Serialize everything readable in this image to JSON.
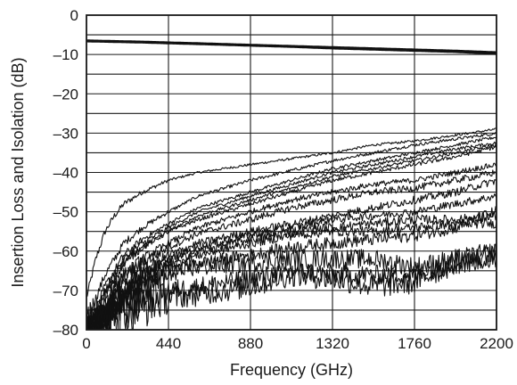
{
  "chart_data": {
    "type": "line",
    "title": "",
    "xlabel": "Frequency (GHz)",
    "ylabel": "Insertion Loss and Isolation (dB)",
    "xlim": [
      0,
      2200
    ],
    "ylim": [
      -80,
      0
    ],
    "x_ticks": [
      0,
      440,
      880,
      1320,
      1760,
      2200
    ],
    "y_ticks": [
      0,
      -10,
      -20,
      -30,
      -40,
      -50,
      -60,
      -70,
      -80
    ],
    "x_tick_labels": [
      "0",
      "440",
      "880",
      "1320",
      "1760",
      "2200"
    ],
    "y_tick_labels": [
      "0",
      "–10",
      "–20",
      "–30",
      "–40",
      "–50",
      "–60",
      "–70",
      "–80"
    ],
    "grid": true,
    "x": [
      0,
      50,
      100,
      150,
      200,
      300,
      440,
      600,
      880,
      1100,
      1320,
      1540,
      1760,
      1980,
      2200
    ],
    "series": [
      {
        "values": [
          -6.5,
          -6.55,
          -6.6,
          -6.65,
          -6.7,
          -6.8,
          -7.0,
          -7.2,
          -7.6,
          -7.9,
          -8.2,
          -8.5,
          -8.8,
          -9.1,
          -9.5
        ],
        "noise": 0
      },
      {
        "values": [
          -6.6,
          -6.65,
          -6.7,
          -6.75,
          -6.8,
          -6.9,
          -7.1,
          -7.3,
          -7.7,
          -8.0,
          -8.4,
          -8.7,
          -9.0,
          -9.3,
          -9.8
        ],
        "noise": 0
      },
      {
        "values": [
          -72,
          -62,
          -55,
          -51,
          -48,
          -45,
          -42,
          -40,
          -38,
          -36.5,
          -35,
          -33,
          -32,
          -30.5,
          -29
        ],
        "noise": 0.3
      },
      {
        "values": [
          -80,
          -72,
          -66,
          -62,
          -58,
          -54,
          -50,
          -46,
          -42,
          -39.5,
          -37,
          -35,
          -33,
          -31.5,
          -30
        ],
        "noise": 0.4
      },
      {
        "values": [
          -80,
          -75,
          -69,
          -65,
          -61,
          -57,
          -53,
          -49,
          -45,
          -42,
          -39,
          -37,
          -35,
          -33,
          -31
        ],
        "noise": 0.4
      },
      {
        "values": [
          -80,
          -76,
          -70,
          -66,
          -62,
          -58,
          -54,
          -50,
          -46,
          -43,
          -40,
          -38,
          -36,
          -34,
          -32.5
        ],
        "noise": 0.4
      },
      {
        "values": [
          -80,
          -77,
          -72,
          -67,
          -63,
          -59,
          -55,
          -51,
          -47,
          -44,
          -41,
          -39,
          -37,
          -35,
          -33
        ],
        "noise": 0.4
      },
      {
        "values": [
          -80,
          -76,
          -71,
          -67,
          -63,
          -59,
          -55,
          -52,
          -48,
          -45,
          -42,
          -40,
          -38,
          -36,
          -33.5
        ],
        "noise": 0.5
      },
      {
        "values": [
          -80,
          -78,
          -74,
          -70,
          -66,
          -62,
          -58,
          -54,
          -50,
          -47,
          -45,
          -43,
          -42,
          -40,
          -38
        ],
        "noise": 0.7
      },
      {
        "values": [
          -80,
          -78,
          -74,
          -70,
          -67,
          -63,
          -59,
          -55.5,
          -52,
          -49,
          -47,
          -45,
          -44,
          -42,
          -40
        ],
        "noise": 0.9
      },
      {
        "values": [
          -80,
          -79,
          -75,
          -72,
          -69,
          -65,
          -61,
          -58,
          -55,
          -53,
          -51,
          -49,
          -47,
          -45,
          -42
        ],
        "noise": 1.0
      },
      {
        "values": [
          -80,
          -79,
          -76,
          -73,
          -70,
          -66,
          -62,
          -59,
          -56,
          -54,
          -52,
          -51,
          -50,
          -48,
          -46
        ],
        "noise": 1.0
      },
      {
        "values": [
          -80,
          -79,
          -77,
          -74,
          -71,
          -67,
          -63,
          -60,
          -57,
          -55,
          -54,
          -53,
          -52,
          -52,
          -51
        ],
        "noise": 1.2
      },
      {
        "values": [
          -80,
          -80,
          -78,
          -75,
          -72,
          -68,
          -64,
          -61,
          -58,
          -56,
          -55,
          -55,
          -54,
          -53,
          -53
        ],
        "noise": 1.2
      },
      {
        "values": [
          -80,
          -80,
          -78,
          -76,
          -73,
          -70,
          -66,
          -63,
          -61,
          -59,
          -58,
          -57,
          -56,
          -54,
          -50
        ],
        "noise": 1.6
      },
      {
        "values": [
          -80,
          -79,
          -77,
          -73,
          -70,
          -67,
          -65,
          -64,
          -63,
          -62,
          -62,
          -62,
          -64,
          -62,
          -60
        ],
        "noise": 2.5
      },
      {
        "values": [
          -80,
          -80,
          -79,
          -77,
          -75,
          -72,
          -70,
          -69,
          -67,
          -65,
          -66,
          -66,
          -66,
          -63,
          -62
        ],
        "noise": 2.5
      },
      {
        "values": [
          -80,
          -80,
          -80,
          -78,
          -76,
          -74,
          -72,
          -71,
          -69,
          -66,
          -67,
          -69,
          -68,
          -63,
          -61
        ],
        "noise": 3.0
      }
    ]
  }
}
